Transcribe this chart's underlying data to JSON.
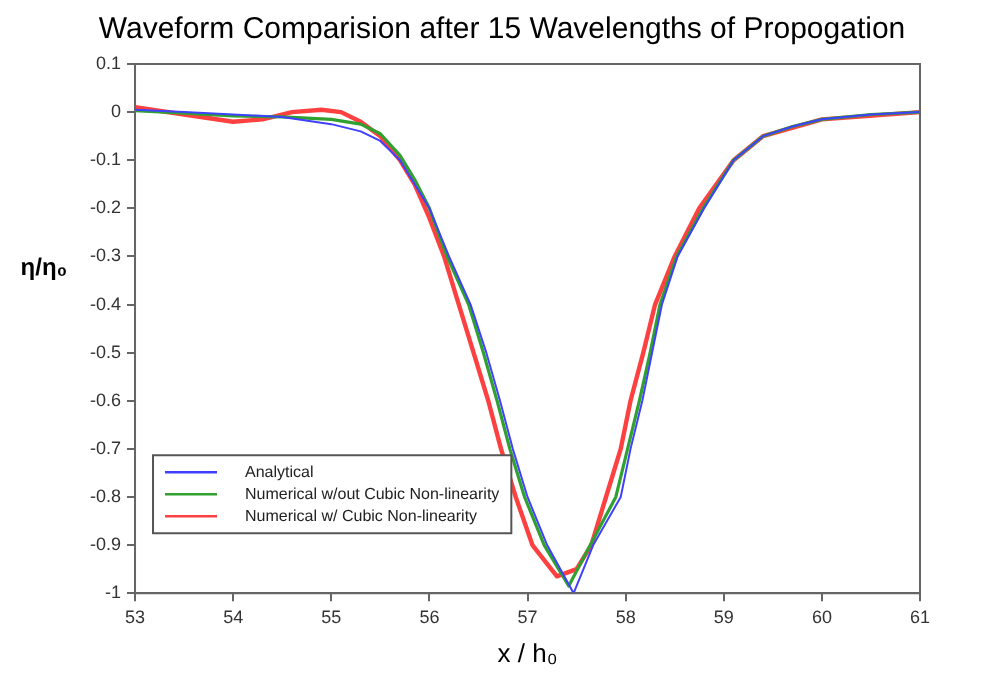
{
  "chart_data": {
    "type": "line",
    "title": "Waveform Comparision after 15 Wavelengths of Propogation",
    "xlabel": "x / h₀",
    "ylabel": "η/η₀",
    "xlim": [
      53,
      61
    ],
    "xticks": [
      53,
      54,
      55,
      56,
      57,
      58,
      59,
      60,
      61
    ],
    "ylim": [
      -1,
      0.1
    ],
    "yticks": [
      -1,
      -0.9,
      -0.8,
      -0.7,
      -0.6,
      -0.5,
      -0.4,
      -0.3,
      -0.2,
      -0.1,
      0,
      0.1
    ],
    "grid": false,
    "legend": "bottom left",
    "marker": "none",
    "line_style": "solid",
    "series": [
      {
        "name": "Analytical",
        "color": "#4040ff",
        "x": [
          53,
          53.5,
          54,
          54.5,
          55,
          55.3,
          55.5,
          55.7,
          55.85,
          56,
          56.2,
          56.42,
          56.58,
          56.72,
          56.85,
          57,
          57.2,
          57.47,
          57.67,
          57.95,
          58.05,
          58.17,
          58.27,
          58.37,
          58.53,
          58.8,
          59.1,
          59.4,
          59.7,
          60,
          60.5,
          61
        ],
        "values": [
          0.005,
          0,
          -0.005,
          -0.01,
          -0.025,
          -0.04,
          -0.06,
          -0.1,
          -0.15,
          -0.2,
          -0.3,
          -0.4,
          -0.5,
          -0.6,
          -0.7,
          -0.8,
          -0.9,
          -1,
          -0.9,
          -0.8,
          -0.7,
          -0.6,
          -0.5,
          -0.4,
          -0.3,
          -0.2,
          -0.1,
          -0.05,
          -0.03,
          -0.015,
          -0.005,
          0
        ]
      },
      {
        "name": "Numerical w/out Cubic Non-linearity",
        "color": "#30a030",
        "x": [
          53,
          53.5,
          54,
          54.5,
          55,
          55.3,
          55.5,
          55.7,
          55.85,
          56,
          56.18,
          56.4,
          56.55,
          56.69,
          56.82,
          56.97,
          57.17,
          57.42,
          57.64,
          57.9,
          58.02,
          58.14,
          58.25,
          58.35,
          58.52,
          58.79,
          59.1,
          59.4,
          59.7,
          60,
          60.5,
          61
        ],
        "values": [
          0.003,
          -0.002,
          -0.008,
          -0.01,
          -0.015,
          -0.025,
          -0.045,
          -0.09,
          -0.14,
          -0.2,
          -0.3,
          -0.4,
          -0.5,
          -0.6,
          -0.7,
          -0.8,
          -0.9,
          -0.985,
          -0.9,
          -0.8,
          -0.7,
          -0.6,
          -0.5,
          -0.4,
          -0.3,
          -0.2,
          -0.1,
          -0.05,
          -0.03,
          -0.015,
          -0.005,
          0
        ]
      },
      {
        "name": "Numerical w/ Cubic Non-linearity",
        "color": "#ff4040",
        "x": [
          53,
          53.5,
          54,
          54.3,
          54.6,
          54.9,
          55.1,
          55.3,
          55.5,
          55.7,
          55.85,
          56,
          56.15,
          56.3,
          56.45,
          56.6,
          56.73,
          56.88,
          57.05,
          57.3,
          57.5,
          57.65,
          57.8,
          57.95,
          58.05,
          58.18,
          58.3,
          58.5,
          58.75,
          59.1,
          59.4,
          60,
          61
        ],
        "values": [
          0.01,
          -0.005,
          -0.02,
          -0.015,
          0,
          0.005,
          0,
          -0.02,
          -0.05,
          -0.1,
          -0.15,
          -0.22,
          -0.3,
          -0.4,
          -0.5,
          -0.6,
          -0.7,
          -0.8,
          -0.9,
          -0.965,
          -0.95,
          -0.9,
          -0.8,
          -0.7,
          -0.6,
          -0.5,
          -0.4,
          -0.3,
          -0.2,
          -0.1,
          -0.05,
          -0.015,
          0
        ]
      }
    ]
  }
}
